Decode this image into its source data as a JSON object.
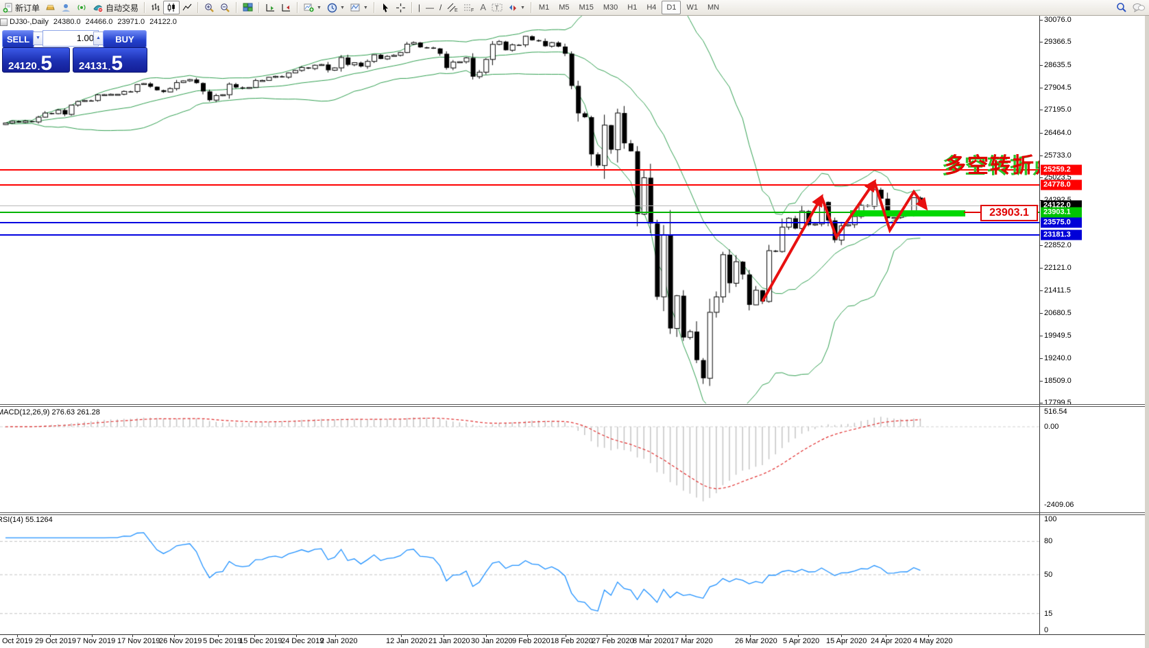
{
  "toolbar": {
    "new_order_label": "新订单",
    "auto_trading_label": "自动交易",
    "timeframes": [
      "M1",
      "M5",
      "M15",
      "M30",
      "H1",
      "H4",
      "D1",
      "W1",
      "MN"
    ],
    "active_timeframe": "D1"
  },
  "chart": {
    "title": "DJ30-,Daily",
    "ohlc": {
      "open": "24380.0",
      "high": "24466.0",
      "low": "23971.0",
      "close": "24122.0"
    },
    "trade_panel": {
      "sell_label": "SELL",
      "buy_label": "BUY",
      "volume": "1.00",
      "sell_price_main": "24120",
      "sell_price_big": "5",
      "buy_price_main": "24131",
      "buy_price_big": "5"
    },
    "annotations": {
      "turning_point": "多空转折点",
      "support_price_label": "23903.1"
    },
    "price_axis_ticks": [
      "30076.0",
      "29366.5",
      "28635.5",
      "27904.5",
      "27195.0",
      "26464.0",
      "25733.0",
      "25023.5",
      "24292.5",
      "22852.0",
      "22121.0",
      "21411.5",
      "20680.5",
      "19949.5",
      "19240.0",
      "18509.0",
      "17799.5"
    ]
  },
  "macd_panel": {
    "name": "MACD(12,26,9)",
    "value": "276.63",
    "signal": "261.28",
    "ticks": [
      "516.54",
      "0.00",
      "-2409.06"
    ]
  },
  "rsi_panel": {
    "name": "RSI(14)",
    "value": "55.1264",
    "ticks": [
      "100",
      "80",
      "50",
      "15",
      "0"
    ],
    "grid_levels": [
      80,
      50,
      15
    ]
  },
  "date_axis": {
    "labels": [
      "Oct 2019",
      "29 Oct 2019",
      "7 Nov 2019",
      "17 Nov 2019",
      "26 Nov 2019",
      "5 Dec 2019",
      "15 Dec 2019",
      "24 Dec 2019",
      "2 Jan 2020",
      "12 Jan 2020",
      "21 Jan 2020",
      "30 Jan 2020",
      "9 Feb 2020",
      "18 Feb 2020",
      "27 Feb 2020",
      "8 Mar 2020",
      "17 Mar 2020",
      "26 Mar 2020",
      "5 Apr 2020",
      "15 Apr 2020",
      "24 Apr 2020",
      "4 May 2020"
    ]
  },
  "chart_data": {
    "type": "candlestick",
    "symbol": "DJ30-",
    "period": "Daily",
    "title": "DJ30-,Daily 24380.0 24466.0 23971.0 24122.0",
    "y_axis_range": [
      17799.5,
      30076.0
    ],
    "macd_axis_range": [
      -2409.06,
      516.54
    ],
    "rsi_axis_range": [
      0,
      100
    ],
    "first_open": 26720,
    "closes": [
      26770,
      26828,
      26788,
      26834,
      26805,
      26958,
      27090,
      27071,
      27186,
      27046,
      27347,
      27462,
      27493,
      27492,
      27675,
      27681,
      27691,
      27691,
      27784,
      27782,
      28005,
      28036,
      27934,
      27821,
      27766,
      27875,
      28066,
      28121,
      28164,
      28051,
      27783,
      27503,
      27650,
      27678,
      28015,
      27910,
      27882,
      27911,
      28132,
      28135,
      28236,
      28267,
      28239,
      28377,
      28455,
      28551,
      28515,
      28622,
      28645,
      28462,
      28538,
      28869,
      28635,
      28704,
      28584,
      28745,
      28957,
      28824,
      28907,
      28939,
      29030,
      29298,
      29348,
      29196,
      29186,
      29160,
      28990,
      28536,
      28723,
      28734,
      28859,
      28256,
      28400,
      28808,
      29291,
      29380,
      29103,
      29277,
      29276,
      29551,
      29423,
      29398,
      29232,
      29348,
      29220,
      28992,
      27961,
      27081,
      26958,
      25767,
      25409,
      26703,
      25917,
      27091,
      26121,
      25865,
      23851,
      25018,
      23553,
      21201,
      23186,
      20188,
      21237,
      19899,
      20087,
      19174,
      18592,
      20705,
      21200,
      22552,
      21637,
      22327,
      21917,
      20944,
      21413,
      21053,
      22680,
      22654,
      23434,
      23719,
      23391,
      23950,
      23504,
      23537,
      24242,
      23650,
      23018,
      23476,
      23515,
      23775,
      24134,
      24102,
      24634,
      24346,
      23724,
      23749,
      23883,
      23900,
      24380,
      24122
    ],
    "last_candle": {
      "open": 24380.0,
      "high": 24466.0,
      "low": 23971.0,
      "close": 24122.0
    },
    "indicators": {
      "bollinger": {
        "period": 20,
        "deviation": 2,
        "color": "#2f9e4f"
      },
      "macd": {
        "fast": 12,
        "slow": 26,
        "signal": 9,
        "value": 276.63,
        "signal_value": 261.28,
        "histogram_color": "#c4c4c4",
        "signal_color": "#e02828"
      },
      "rsi": {
        "period": 14,
        "value": 55.1264,
        "color": "#1e90ff"
      }
    },
    "levels": [
      {
        "price": 25259.2,
        "label": "25259.2",
        "line_color": "#fe0000",
        "badge_bg": "#fe0000",
        "width": 2
      },
      {
        "price": 24778.0,
        "label": "24778.0",
        "line_color": "#fe0000",
        "badge_bg": "#fe0000",
        "width": 2
      },
      {
        "price": 24122.0,
        "label": "24122.0",
        "line_color": "#b8b8b8",
        "badge_bg": "#000000",
        "width": 1
      },
      {
        "price": 23903.1,
        "label": "23903.1",
        "line_color": "#00b400",
        "badge_bg": "#00c400",
        "width": 2
      },
      {
        "price": 23575.0,
        "label": "23575.0",
        "line_color": "#0000e0",
        "badge_bg": "#0000d8",
        "width": 2
      },
      {
        "price": 23181.3,
        "label": "23181.3",
        "line_color": "#0000e0",
        "badge_bg": "#0000d8",
        "width": 2
      }
    ],
    "highlight_zone": {
      "price": 23903.1,
      "label": "23903.1",
      "color": "#00d800"
    },
    "trend_annotation": "red zigzag arrows over April-May swings pointing down at the end"
  }
}
